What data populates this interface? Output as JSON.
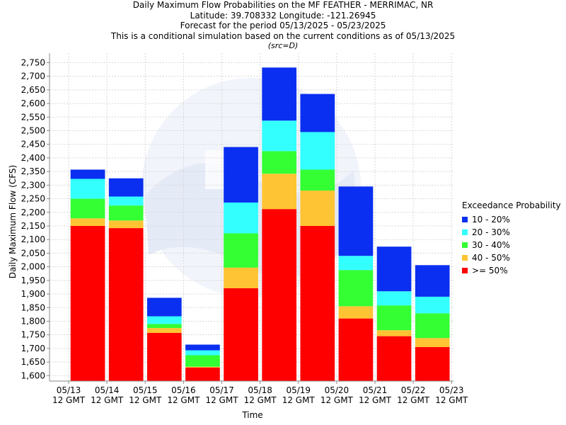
{
  "titles": {
    "line1": "Daily Maximum Flow Probabilities on the MF FEATHER - MERRIMAC, NR",
    "line2": "Latitude: 39.708332 Longitude: -121.26945",
    "line3": "Forecast for the period 05/13/2025 - 05/23/2025",
    "line4": "This is a conditional simulation based on the current conditions as of 05/13/2025",
    "line5": "(src=D)"
  },
  "legend": {
    "title": "Exceedance Probability",
    "items": [
      {
        "label": "10 - 20%",
        "color": "#0a2ff0"
      },
      {
        "label": "20 - 30%",
        "color": "#33ffff"
      },
      {
        "label": "30 - 40%",
        "color": "#33ff33"
      },
      {
        "label": "40 - 50%",
        "color": "#ffc433"
      },
      {
        "label": ">= 50%",
        "color": "#ff0000"
      }
    ]
  },
  "chart_data": {
    "type": "bar",
    "stacked": true,
    "xlabel": "Time",
    "ylabel": "Daily Maximum Flow (CFS)",
    "ylim": [
      1580,
      2785
    ],
    "yticks": [
      1600,
      1650,
      1700,
      1750,
      1800,
      1850,
      1900,
      1950,
      2000,
      2050,
      2100,
      2150,
      2200,
      2250,
      2300,
      2350,
      2400,
      2450,
      2500,
      2550,
      2600,
      2650,
      2700,
      2750
    ],
    "ytick_labels": [
      "1,600",
      "1,650",
      "1,700",
      "1,750",
      "1,800",
      "1,850",
      "1,900",
      "1,950",
      "2,000",
      "2,050",
      "2,100",
      "2,150",
      "2,200",
      "2,250",
      "2,300",
      "2,350",
      "2,400",
      "2,450",
      "2,500",
      "2,550",
      "2,600",
      "2,650",
      "2,700",
      "2,750"
    ],
    "xtick_labels": [
      [
        "05/13",
        "12 GMT"
      ],
      [
        "05/14",
        "12 GMT"
      ],
      [
        "05/15",
        "12 GMT"
      ],
      [
        "05/16",
        "12 GMT"
      ],
      [
        "05/17",
        "12 GMT"
      ],
      [
        "05/18",
        "12 GMT"
      ],
      [
        "05/19",
        "12 GMT"
      ],
      [
        "05/20",
        "12 GMT"
      ],
      [
        "05/21",
        "12 GMT"
      ],
      [
        "05/22",
        "12 GMT"
      ],
      [
        "05/23",
        "12 GMT"
      ]
    ],
    "grid": true,
    "legend_position": "right",
    "bars": [
      {
        "date": "05/13",
        "top50": 2150,
        "top40": 2178,
        "top30": 2250,
        "top20": 2323,
        "top10": 2357
      },
      {
        "date": "05/14",
        "top50": 2142,
        "top40": 2170,
        "top30": 2225,
        "top20": 2258,
        "top10": 2325
      },
      {
        "date": "05/15",
        "top50": 1757,
        "top40": 1775,
        "top30": 1790,
        "top20": 1818,
        "top10": 1886
      },
      {
        "date": "05/16",
        "top50": 1630,
        "top40": 1633,
        "top30": 1675,
        "top20": 1693,
        "top10": 1714
      },
      {
        "date": "05/17",
        "top50": 1921,
        "top40": 1997,
        "top30": 2123,
        "top20": 2236,
        "top10": 2440
      },
      {
        "date": "05/18",
        "top50": 2212,
        "top40": 2342,
        "top30": 2425,
        "top20": 2537,
        "top10": 2732
      },
      {
        "date": "05/19",
        "top50": 2150,
        "top40": 2280,
        "top30": 2357,
        "top20": 2495,
        "top10": 2635
      },
      {
        "date": "05/20",
        "top50": 1810,
        "top40": 1855,
        "top30": 1988,
        "top20": 2040,
        "top10": 2295
      },
      {
        "date": "05/21",
        "top50": 1745,
        "top40": 1767,
        "top30": 1858,
        "top20": 1910,
        "top10": 2074
      },
      {
        "date": "05/22",
        "top50": 1705,
        "top40": 1738,
        "top30": 1829,
        "top20": 1890,
        "top10": 2006
      }
    ],
    "series_order": [
      "top50",
      "top40",
      "top30",
      "top20",
      "top10"
    ],
    "series_colors": {
      "top50": "#ff0000",
      "top40": "#ffc433",
      "top30": "#33ff33",
      "top20": "#33ffff",
      "top10": "#0a2ff0"
    }
  }
}
